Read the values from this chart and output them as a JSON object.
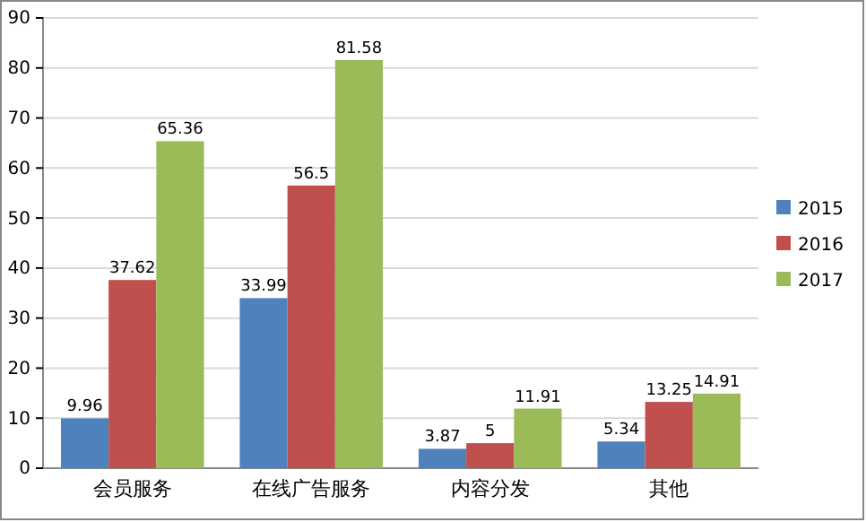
{
  "chart_data": {
    "type": "bar",
    "categories": [
      "会员服务",
      "在线广告服务",
      "内容分发",
      "其他"
    ],
    "series": [
      {
        "name": "2015",
        "color": "#4f81bd",
        "values": [
          9.96,
          33.99,
          3.87,
          5.34
        ]
      },
      {
        "name": "2016",
        "color": "#c0504d",
        "values": [
          37.62,
          56.5,
          5,
          13.25
        ]
      },
      {
        "name": "2017",
        "color": "#9bbb59",
        "values": [
          65.36,
          81.58,
          11.91,
          14.91
        ]
      }
    ],
    "ylim": [
      0,
      90
    ],
    "yticks": [
      0,
      10,
      20,
      30,
      40,
      50,
      60,
      70,
      80,
      90
    ],
    "grid": "y",
    "legend": "right",
    "data_labels": true
  }
}
